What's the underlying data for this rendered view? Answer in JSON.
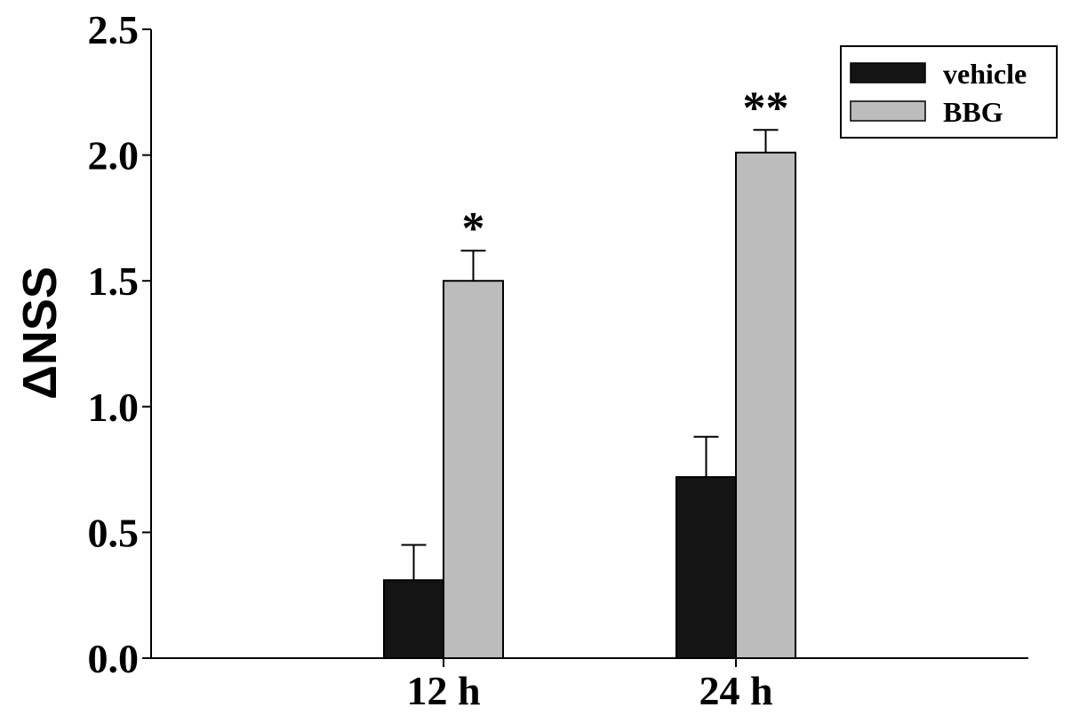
{
  "chart_data": {
    "type": "bar",
    "title": "",
    "xlabel": "",
    "ylabel": "ΔNSS",
    "ylim": [
      0,
      2.5
    ],
    "yticks": [
      "0.0",
      "0.5",
      "1.0",
      "1.5",
      "2.0",
      "2.5"
    ],
    "categories": [
      "12 h",
      "24 h"
    ],
    "series": [
      {
        "name": "vehicle",
        "color": "#141414",
        "values": [
          0.31,
          0.72
        ],
        "errors": [
          0.14,
          0.16
        ]
      },
      {
        "name": "BBG",
        "color": "#bcbcbc",
        "values": [
          1.5,
          2.01
        ],
        "errors": [
          0.12,
          0.09
        ]
      }
    ],
    "annotations": [
      {
        "category": "12 h",
        "series": "BBG",
        "text": "*"
      },
      {
        "category": "24 h",
        "series": "BBG",
        "text": "**"
      }
    ],
    "legend_position": "top-right",
    "grid": false
  }
}
